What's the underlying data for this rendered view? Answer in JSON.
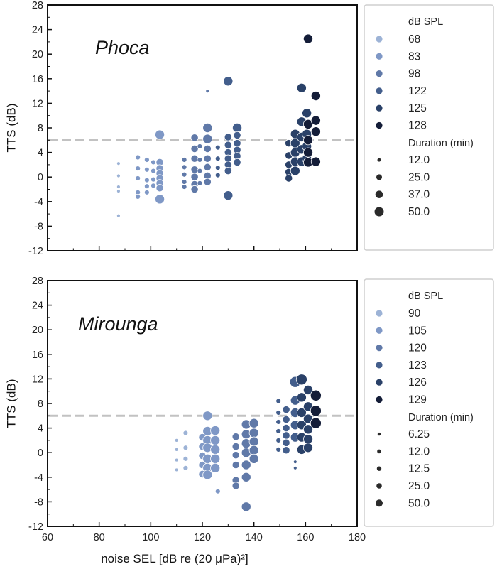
{
  "colors": {
    "dashed": "#c2c2c2",
    "frame": "#111111",
    "legend_border": "#cfcfcf"
  },
  "chart_data": [
    {
      "type": "scatter",
      "panel": "top",
      "species": "Phoca",
      "xlabel": "noise SEL [dB re (20 μPa)²]",
      "ylabel": "TTS (dB)",
      "xlim": [
        60,
        180
      ],
      "ylim": [
        -12,
        28
      ],
      "yticks": [
        "28",
        "24",
        "20",
        "16",
        "12",
        "8",
        "4",
        "0",
        "-4",
        "-8",
        "-12"
      ],
      "reference_line_y": 6,
      "legend": {
        "spl_title": "dB SPL",
        "spl": [
          {
            "label": "68",
            "color": "#9db3d6"
          },
          {
            "label": "83",
            "color": "#7f98c6"
          },
          {
            "label": "98",
            "color": "#6079a8"
          },
          {
            "label": "122",
            "color": "#435e8c"
          },
          {
            "label": "125",
            "color": "#2a4168"
          },
          {
            "label": "128",
            "color": "#141d38"
          }
        ],
        "dur_title": "Duration (min)",
        "durations": [
          {
            "label": "12.0",
            "r": 2.5
          },
          {
            "label": "25.0",
            "r": 4
          },
          {
            "label": "37.0",
            "r": 5.3
          },
          {
            "label": "50.0",
            "r": 6.5
          }
        ]
      },
      "series": [
        {
          "spl": "68",
          "points": [
            [
              87.5,
              2.2,
              0
            ],
            [
              87.5,
              0.2,
              0
            ],
            [
              87.5,
              -1.6,
              0
            ],
            [
              87.5,
              -2.3,
              0
            ],
            [
              87.5,
              -6.3,
              0
            ]
          ]
        },
        {
          "spl": "83",
          "points": [
            [
              95,
              3.2,
              1
            ],
            [
              95,
              1.4,
              1
            ],
            [
              95,
              -0.2,
              1
            ],
            [
              95,
              -2.5,
              1
            ],
            [
              95,
              -3.2,
              1
            ],
            [
              98.5,
              2.8,
              1
            ],
            [
              98.5,
              1.2,
              1
            ],
            [
              98.5,
              -0.5,
              1
            ],
            [
              98.5,
              -1.5,
              1
            ],
            [
              98.5,
              -2.5,
              1
            ],
            [
              101,
              2.4,
              1
            ],
            [
              101,
              1,
              1
            ],
            [
              101,
              -0.4,
              1
            ],
            [
              101,
              -1.4,
              1
            ],
            [
              103.5,
              6.9,
              3
            ],
            [
              103.5,
              2.4,
              2
            ],
            [
              103.5,
              1.4,
              2
            ],
            [
              103.5,
              0.6,
              2
            ],
            [
              103.5,
              -0.2,
              2
            ],
            [
              103.5,
              -1,
              2
            ],
            [
              103.5,
              -1.8,
              2
            ],
            [
              103.5,
              -3.6,
              3
            ]
          ]
        },
        {
          "spl": "98",
          "points": [
            [
              113,
              2.8,
              1
            ],
            [
              113,
              1.6,
              1
            ],
            [
              113,
              0.4,
              1
            ],
            [
              113,
              -0.8,
              1
            ],
            [
              113,
              -1.6,
              1
            ],
            [
              117,
              6.4,
              2
            ],
            [
              117,
              4.6,
              2
            ],
            [
              117,
              3,
              2
            ],
            [
              117,
              1.2,
              2
            ],
            [
              117,
              0,
              2
            ],
            [
              117,
              -1.2,
              2
            ],
            [
              117,
              -2,
              2
            ],
            [
              119,
              5,
              1
            ],
            [
              119,
              2.8,
              1
            ],
            [
              119,
              1,
              1
            ],
            [
              119,
              -1,
              1
            ],
            [
              122,
              14,
              0
            ],
            [
              122,
              8,
              3
            ],
            [
              122,
              6.2,
              3
            ],
            [
              122,
              4.6,
              2
            ],
            [
              122,
              3,
              2
            ],
            [
              122,
              1.6,
              2
            ],
            [
              122,
              0.2,
              2
            ],
            [
              122,
              -0.8,
              2
            ]
          ]
        },
        {
          "spl": "122",
          "points": [
            [
              126,
              4.8,
              1
            ],
            [
              126,
              3,
              1
            ],
            [
              126,
              1.5,
              1
            ],
            [
              126,
              0.3,
              1
            ],
            [
              130,
              15.6,
              3
            ],
            [
              130,
              6.5,
              2
            ],
            [
              130,
              5.2,
              2
            ],
            [
              130,
              4,
              2
            ],
            [
              130,
              3,
              2
            ],
            [
              130,
              2,
              2
            ],
            [
              130,
              1,
              2
            ],
            [
              130,
              -3,
              3
            ],
            [
              133.5,
              8,
              3
            ],
            [
              133.5,
              6.8,
              2
            ],
            [
              133.5,
              5.5,
              2
            ],
            [
              133.5,
              4.4,
              2
            ],
            [
              133.5,
              3.4,
              2
            ],
            [
              133.5,
              2.4,
              2
            ]
          ]
        },
        {
          "spl": "125",
          "points": [
            [
              153.5,
              5.5,
              2
            ],
            [
              153.5,
              3.5,
              2
            ],
            [
              153.5,
              2,
              2
            ],
            [
              153.5,
              0.8,
              2
            ],
            [
              153.5,
              -0.2,
              2
            ],
            [
              156,
              7,
              3
            ],
            [
              156,
              5.5,
              3
            ],
            [
              156,
              4,
              3
            ],
            [
              156,
              2.5,
              3
            ],
            [
              156,
              1,
              3
            ],
            [
              158.5,
              14.5,
              3
            ],
            [
              158.5,
              9,
              3
            ],
            [
              158.5,
              6.5,
              3
            ],
            [
              158.5,
              4.5,
              3
            ],
            [
              158.5,
              2.5,
              3
            ],
            [
              160.5,
              10.4,
              3
            ],
            [
              160.5,
              7,
              3
            ],
            [
              160.5,
              5,
              3
            ],
            [
              160.5,
              3,
              3
            ]
          ]
        },
        {
          "spl": "128",
          "points": [
            [
              161,
              22.5,
              3
            ],
            [
              161,
              8.6,
              3
            ],
            [
              161,
              6,
              3
            ],
            [
              161,
              4,
              3
            ],
            [
              161,
              2.4,
              3
            ],
            [
              164,
              13.2,
              3
            ],
            [
              164,
              9.2,
              3
            ],
            [
              164,
              7.4,
              3
            ],
            [
              164,
              2.5,
              3
            ]
          ]
        }
      ]
    },
    {
      "type": "scatter",
      "panel": "bottom",
      "species": "Mirounga",
      "xlabel": "noise SEL [dB re (20 μPa)²]",
      "ylabel": "TTS (dB)",
      "xlim": [
        60,
        180
      ],
      "ylim": [
        -12,
        28
      ],
      "xticks": [
        "60",
        "80",
        "100",
        "120",
        "140",
        "160",
        "180"
      ],
      "yticks": [
        "28",
        "24",
        "20",
        "16",
        "12",
        "8",
        "4",
        "0",
        "-4",
        "-8",
        "-12"
      ],
      "reference_line_y": 6,
      "legend": {
        "spl_title": "dB SPL",
        "spl": [
          {
            "label": "90",
            "color": "#9db3d6"
          },
          {
            "label": "105",
            "color": "#7f98c6"
          },
          {
            "label": "120",
            "color": "#6079a8"
          },
          {
            "label": "123",
            "color": "#435e8c"
          },
          {
            "label": "126",
            "color": "#2a4168"
          },
          {
            "label": "129",
            "color": "#141d38"
          }
        ],
        "dur_title": "Duration (min)",
        "durations": [
          {
            "label": "6.25",
            "r": 2.2
          },
          {
            "label": "12.0",
            "r": 2.8
          },
          {
            "label": "12.5",
            "r": 3.2
          },
          {
            "label": "25.0",
            "r": 3.8
          },
          {
            "label": "50.0",
            "r": 5
          }
        ]
      },
      "series": [
        {
          "spl": "90",
          "points": [
            [
              110,
              2,
              0
            ],
            [
              110,
              0.5,
              0
            ],
            [
              110,
              -1.2,
              0
            ],
            [
              110,
              -2.8,
              0
            ],
            [
              113.5,
              3.2,
              1
            ],
            [
              113.5,
              0.8,
              1
            ],
            [
              113.5,
              -1,
              1
            ],
            [
              113.5,
              -2.5,
              1
            ]
          ]
        },
        {
          "spl": "105",
          "points": [
            [
              120,
              2.5,
              2
            ],
            [
              120,
              1,
              2
            ],
            [
              120,
              -0.5,
              2
            ],
            [
              120,
              -2,
              2
            ],
            [
              120,
              -3.5,
              2
            ],
            [
              122,
              6,
              3
            ],
            [
              122,
              3.5,
              3
            ],
            [
              122,
              2,
              3
            ],
            [
              122,
              0.8,
              3
            ],
            [
              122,
              -1,
              3
            ],
            [
              122,
              -2.5,
              3
            ],
            [
              122,
              -3.6,
              3
            ],
            [
              125,
              3.6,
              3
            ],
            [
              125,
              2,
              3
            ],
            [
              125,
              0.5,
              3
            ],
            [
              125,
              -1,
              3
            ],
            [
              125,
              -2.5,
              3
            ],
            [
              126,
              -6.3,
              1
            ]
          ]
        },
        {
          "spl": "120",
          "points": [
            [
              133,
              2.6,
              2
            ],
            [
              133,
              1,
              2
            ],
            [
              133,
              -0.4,
              2
            ],
            [
              133,
              -2,
              2
            ],
            [
              133,
              -4.5,
              2
            ],
            [
              133,
              -5.4,
              2
            ],
            [
              137,
              4.6,
              3
            ],
            [
              137,
              3,
              3
            ],
            [
              137,
              1.5,
              3
            ],
            [
              137,
              0,
              3
            ],
            [
              137,
              -2,
              3
            ],
            [
              137,
              -4,
              3
            ],
            [
              137,
              -8.8,
              3
            ],
            [
              140,
              4.8,
              3
            ],
            [
              140,
              3.2,
              3
            ],
            [
              140,
              1.8,
              3
            ],
            [
              140,
              0.4,
              3
            ],
            [
              140,
              -1,
              3
            ]
          ]
        },
        {
          "spl": "123",
          "points": [
            [
              149.5,
              8.4,
              1
            ],
            [
              149.5,
              6.5,
              1
            ],
            [
              149.5,
              5,
              1
            ],
            [
              149.5,
              3.5,
              1
            ],
            [
              149.5,
              2,
              1
            ],
            [
              149.5,
              0.5,
              1
            ],
            [
              152.5,
              7,
              2
            ],
            [
              152.5,
              5.4,
              2
            ],
            [
              152.5,
              4,
              2
            ],
            [
              152.5,
              2.8,
              2
            ],
            [
              152.5,
              1.6,
              2
            ],
            [
              152.5,
              0.4,
              2
            ],
            [
              156,
              11.5,
              4
            ],
            [
              156,
              8.5,
              3
            ],
            [
              156,
              6.5,
              3
            ],
            [
              156,
              4.5,
              3
            ],
            [
              156,
              2.5,
              3
            ],
            [
              156,
              -1.5,
              0
            ],
            [
              156,
              -2.5,
              0
            ]
          ]
        },
        {
          "spl": "126",
          "points": [
            [
              158.5,
              11.9,
              4
            ],
            [
              158.5,
              9,
              3
            ],
            [
              158.5,
              6.5,
              3
            ],
            [
              158.5,
              4.5,
              3
            ],
            [
              158.5,
              2.5,
              3
            ],
            [
              158.5,
              0.5,
              3
            ],
            [
              161,
              10.2,
              3
            ],
            [
              161,
              7.5,
              3
            ],
            [
              161,
              5.5,
              3
            ],
            [
              161,
              3.8,
              3
            ],
            [
              161,
              2.2,
              3
            ],
            [
              161,
              0.8,
              3
            ]
          ]
        },
        {
          "spl": "129",
          "points": [
            [
              164,
              9.3,
              4
            ],
            [
              164,
              6.8,
              4
            ],
            [
              164,
              4.8,
              4
            ]
          ]
        }
      ]
    }
  ]
}
